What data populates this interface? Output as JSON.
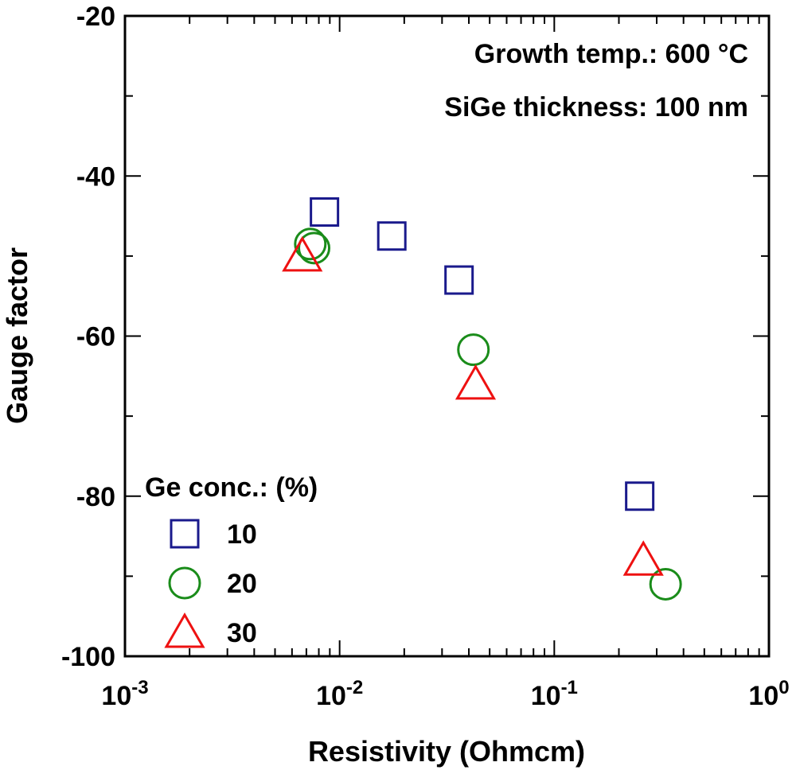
{
  "chart_data": {
    "type": "scatter",
    "title": "",
    "xlabel": "Resistivity (Ohmcm)",
    "ylabel": "Gauge factor",
    "x_scale": "log",
    "xlim": [
      0.001,
      1
    ],
    "ylim": [
      -100,
      -20
    ],
    "x_tick_labels": [
      {
        "base": "10",
        "exp": "-3",
        "value": 0.001
      },
      {
        "base": "10",
        "exp": "-2",
        "value": 0.01
      },
      {
        "base": "10",
        "exp": "-1",
        "value": 0.1
      },
      {
        "base": "10",
        "exp": "0",
        "value": 1
      }
    ],
    "y_ticks": [
      -100,
      -80,
      -60,
      -40,
      -20
    ],
    "y_tick_labels": [
      "-100",
      "-80",
      "-60",
      "-40",
      "-20"
    ],
    "grid": false,
    "annotations": [
      "Growth temp.: 600 °C",
      "SiGe thickness: 100 nm"
    ],
    "legend_title": "Ge conc.: (%)",
    "legend_position": "bottom-left",
    "series": [
      {
        "name": "10",
        "marker": "square",
        "color": "#1a1a8c",
        "points": [
          {
            "x": 0.0085,
            "y": -44.5
          },
          {
            "x": 0.0175,
            "y": -47.5
          },
          {
            "x": 0.036,
            "y": -53
          },
          {
            "x": 0.25,
            "y": -80
          }
        ]
      },
      {
        "name": "20",
        "marker": "circle",
        "color": "#1a8c1a",
        "points": [
          {
            "x": 0.0073,
            "y": -48.5
          },
          {
            "x": 0.0076,
            "y": -49
          },
          {
            "x": 0.042,
            "y": -61.7
          },
          {
            "x": 0.33,
            "y": -91
          }
        ]
      },
      {
        "name": "30",
        "marker": "triangle",
        "color": "#ee1111",
        "points": [
          {
            "x": 0.0067,
            "y": -50
          },
          {
            "x": 0.043,
            "y": -66
          },
          {
            "x": 0.26,
            "y": -88
          }
        ]
      }
    ]
  }
}
